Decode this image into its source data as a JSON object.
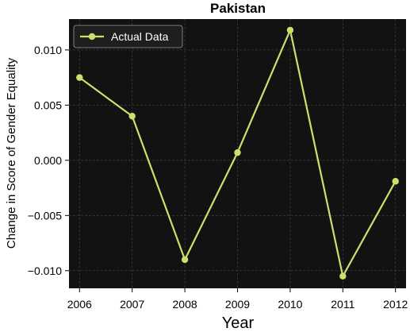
{
  "chart_data": {
    "type": "line",
    "title": "Pakistan",
    "xlabel": "Year",
    "ylabel": "Change in Score of Gender Equality",
    "x": [
      2006,
      2007,
      2008,
      2009,
      2010,
      2011,
      2012
    ],
    "series": [
      {
        "name": "Actual Data",
        "values": [
          0.0075,
          0.004,
          -0.009,
          0.0007,
          0.0118,
          -0.0105,
          -0.0019
        ]
      }
    ],
    "xticks": [
      "2006",
      "2007",
      "2008",
      "2009",
      "2010",
      "2011",
      "2012"
    ],
    "yticks": [
      0.01,
      0.005,
      0.0,
      -0.005,
      -0.01
    ],
    "ytick_labels": [
      "0.010",
      "0.005",
      "0.000",
      "−0.005",
      "−0.010"
    ],
    "xlim": [
      2005.8,
      2012.2
    ],
    "ylim": [
      -0.0116,
      0.0128
    ],
    "grid": true,
    "legend_position": "top-left",
    "colors": {
      "line": "#cfe06a",
      "plot_background": "#121212",
      "grid": "#3a3a3a",
      "legend_background": "#1e1e1e",
      "legend_text": "#ffffff",
      "text": "#000000"
    }
  }
}
